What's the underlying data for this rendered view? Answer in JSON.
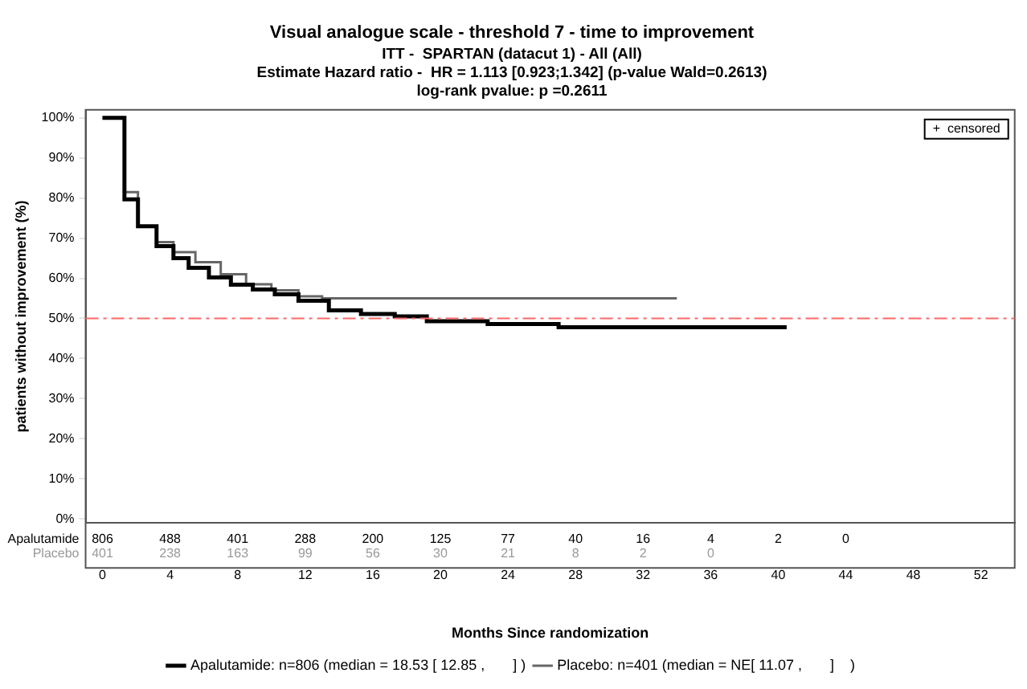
{
  "chart_data": {
    "type": "step",
    "title": "Visual analogue scale - threshold 7 - time to improvement",
    "subtitle": "ITT -  SPARTAN (datacut 1) - All (All)\nEstimate Hazard ratio -  HR = 1.113 [0.923;1.342] (p-value Wald=0.2613)\nlog-rank pvalue: p =0.2611",
    "xlabel": "Months Since randomization",
    "ylabel": "patients without improvement (%)",
    "xlim": [
      -1,
      54
    ],
    "ylim": [
      -1,
      102
    ],
    "xticks": [
      0,
      4,
      8,
      12,
      16,
      20,
      24,
      28,
      32,
      36,
      40,
      44,
      48,
      52
    ],
    "yticks": [
      {
        "value": 0,
        "label": "0%"
      },
      {
        "value": 10,
        "label": "10%"
      },
      {
        "value": 20,
        "label": "20%"
      },
      {
        "value": 30,
        "label": "30%"
      },
      {
        "value": 40,
        "label": "40%"
      },
      {
        "value": 50,
        "label": "50%"
      },
      {
        "value": 60,
        "label": "60%"
      },
      {
        "value": 70,
        "label": "70%"
      },
      {
        "value": 80,
        "label": "80%"
      },
      {
        "value": 90,
        "label": "90%"
      },
      {
        "value": 100,
        "label": "100%"
      }
    ],
    "grid": false,
    "legend": "bottom",
    "marker": "none",
    "line_style": "solid",
    "series": [
      {
        "name": "Apalutamide: n=806 (median = 18.53 [ 12.85 ,       ] )",
        "color": "#000000",
        "x": [
          0,
          1.3,
          2.1,
          3.2,
          4.2,
          5.1,
          6.3,
          7.6,
          8.9,
          10.2,
          11.6,
          13.4,
          15.3,
          17.3,
          19.2,
          22.8,
          27,
          40.5
        ],
        "values": [
          100,
          79.7,
          73,
          68,
          65,
          62.6,
          60.2,
          58.4,
          57.2,
          56,
          54.4,
          52,
          51.1,
          50.5,
          49.3,
          48.6,
          47.8,
          47.8
        ]
      },
      {
        "name": "Placebo: n=401 (median = NE[ 11.07 ,       ]    )",
        "color": "#666666",
        "x": [
          0,
          1.3,
          2.1,
          3.2,
          4.2,
          5.5,
          7,
          8.5,
          10,
          11.6,
          13,
          34
        ],
        "values": [
          100,
          81.5,
          73,
          69,
          66.5,
          64,
          61,
          58.5,
          57,
          55.5,
          55,
          55
        ]
      }
    ],
    "ref_lines": [
      {
        "axis": "y",
        "value": 50,
        "color": "#ff6666",
        "line_style": "dashdot"
      }
    ],
    "annotations": [
      "+  censored",
      [
        "Apalutamide",
        "806",
        "488",
        "401",
        "288",
        "200",
        "125",
        "77",
        "40",
        "16",
        "4",
        "2",
        "0"
      ],
      [
        "Placebo",
        "401",
        "238",
        "163",
        "99",
        "56",
        "30",
        "21",
        "8",
        "2",
        "0"
      ]
    ]
  }
}
